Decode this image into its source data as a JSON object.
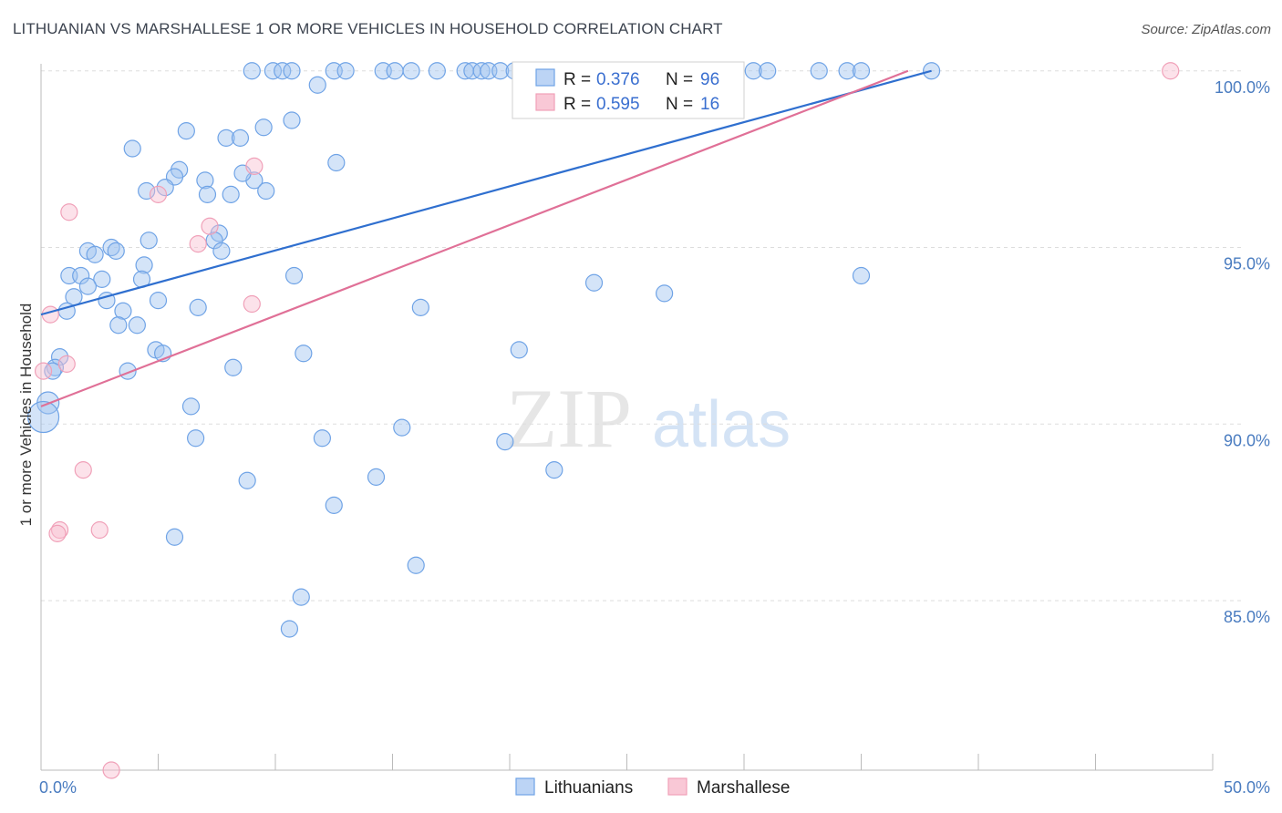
{
  "header": {
    "title": "LITHUANIAN VS MARSHALLESE 1 OR MORE VEHICLES IN HOUSEHOLD CORRELATION CHART",
    "source": "Source: ZipAtlas.com"
  },
  "watermark": {
    "zip": "ZIP",
    "atlas": "atlas"
  },
  "legend": {
    "rows": [
      {
        "r_label": "R =",
        "r_value": "0.376",
        "n_label": "N =",
        "n_value": "96",
        "color": "#6fa3e6"
      },
      {
        "r_label": "R =",
        "r_value": "0.595",
        "n_label": "N =",
        "n_value": "16",
        "color": "#f0a0b8"
      }
    ],
    "bottom": [
      "Lithuanians",
      "Marshallese"
    ]
  },
  "chart_data": {
    "type": "scatter",
    "title": "LITHUANIAN VS MARSHALLESE 1 OR MORE VEHICLES IN HOUSEHOLD CORRELATION CHART",
    "xlabel": "",
    "ylabel": "1 or more Vehicles in Household",
    "xlim": [
      0,
      50
    ],
    "ylim": [
      80.2,
      100.2
    ],
    "x_tick_labels": [
      "0.0%",
      "50.0%"
    ],
    "y_ticks": [
      85,
      90,
      95,
      100
    ],
    "y_tick_labels": [
      "85.0%",
      "90.0%",
      "95.0%",
      "100.0%"
    ],
    "grid": true,
    "legend_position": "top-center",
    "series": [
      {
        "name": "Lithuanians",
        "color": "#6fa3e6",
        "trend": {
          "x0": 0.0,
          "y0": 93.1,
          "x1": 38.0,
          "y1": 100.0
        },
        "points": [
          [
            9.0,
            100
          ],
          [
            9.9,
            100
          ],
          [
            10.3,
            100
          ],
          [
            10.7,
            100
          ],
          [
            12.5,
            100
          ],
          [
            13.0,
            100
          ],
          [
            14.6,
            100
          ],
          [
            15.1,
            100
          ],
          [
            15.8,
            100
          ],
          [
            16.9,
            100
          ],
          [
            18.1,
            100
          ],
          [
            18.4,
            100
          ],
          [
            18.8,
            100
          ],
          [
            19.1,
            100
          ],
          [
            19.6,
            100
          ],
          [
            20.2,
            100
          ],
          [
            21.4,
            100
          ],
          [
            22.3,
            100
          ],
          [
            24.0,
            100
          ],
          [
            24.6,
            100
          ],
          [
            28.3,
            100
          ],
          [
            30.4,
            100
          ],
          [
            31.0,
            100
          ],
          [
            33.2,
            100
          ],
          [
            34.4,
            100
          ],
          [
            35.0,
            100
          ],
          [
            38.0,
            100
          ],
          [
            11.8,
            99.6
          ],
          [
            10.7,
            98.6
          ],
          [
            9.5,
            98.4
          ],
          [
            6.2,
            98.3
          ],
          [
            7.9,
            98.1
          ],
          [
            8.5,
            98.1
          ],
          [
            3.9,
            97.8
          ],
          [
            12.6,
            97.4
          ],
          [
            5.9,
            97.2
          ],
          [
            5.7,
            97.0
          ],
          [
            7.0,
            96.9
          ],
          [
            9.1,
            96.9
          ],
          [
            8.6,
            97.1
          ],
          [
            5.3,
            96.7
          ],
          [
            9.6,
            96.6
          ],
          [
            7.1,
            96.5
          ],
          [
            8.1,
            96.5
          ],
          [
            4.5,
            96.6
          ],
          [
            7.6,
            95.4
          ],
          [
            7.4,
            95.2
          ],
          [
            4.6,
            95.2
          ],
          [
            2.0,
            94.9
          ],
          [
            2.3,
            94.8
          ],
          [
            3.0,
            95.0
          ],
          [
            3.2,
            94.9
          ],
          [
            7.7,
            94.9
          ],
          [
            4.4,
            94.5
          ],
          [
            1.2,
            94.2
          ],
          [
            1.7,
            94.2
          ],
          [
            2.6,
            94.1
          ],
          [
            4.3,
            94.1
          ],
          [
            10.8,
            94.2
          ],
          [
            2.0,
            93.9
          ],
          [
            1.4,
            93.6
          ],
          [
            2.8,
            93.5
          ],
          [
            5.0,
            93.5
          ],
          [
            1.1,
            93.2
          ],
          [
            3.5,
            93.2
          ],
          [
            6.7,
            93.3
          ],
          [
            16.2,
            93.3
          ],
          [
            23.6,
            94.0
          ],
          [
            26.6,
            93.7
          ],
          [
            35.0,
            94.2
          ],
          [
            3.3,
            92.8
          ],
          [
            4.1,
            92.8
          ],
          [
            4.9,
            92.1
          ],
          [
            5.2,
            92.0
          ],
          [
            11.2,
            92.0
          ],
          [
            20.4,
            92.1
          ],
          [
            0.8,
            91.9
          ],
          [
            0.6,
            91.6
          ],
          [
            0.5,
            91.5
          ],
          [
            3.7,
            91.5
          ],
          [
            8.2,
            91.6
          ],
          [
            6.4,
            90.5
          ],
          [
            0.3,
            90.6
          ],
          [
            0.1,
            90.2
          ],
          [
            6.6,
            89.6
          ],
          [
            12.0,
            89.6
          ],
          [
            15.4,
            89.9
          ],
          [
            19.8,
            89.5
          ],
          [
            21.9,
            88.7
          ],
          [
            8.8,
            88.4
          ],
          [
            14.3,
            88.5
          ],
          [
            12.5,
            87.7
          ],
          [
            5.7,
            86.8
          ],
          [
            16.0,
            86.0
          ],
          [
            11.1,
            85.1
          ],
          [
            10.6,
            84.2
          ]
        ]
      },
      {
        "name": "Marshallese",
        "color": "#f0a0b8",
        "trend": {
          "x0": 0.0,
          "y0": 90.5,
          "x1": 37.0,
          "y1": 100.0
        },
        "points": [
          [
            27.0,
            100
          ],
          [
            48.2,
            100
          ],
          [
            9.1,
            97.3
          ],
          [
            5.0,
            96.5
          ],
          [
            1.2,
            96.0
          ],
          [
            7.2,
            95.6
          ],
          [
            6.7,
            95.1
          ],
          [
            9.0,
            93.4
          ],
          [
            0.4,
            93.1
          ],
          [
            1.1,
            91.7
          ],
          [
            0.1,
            91.5
          ],
          [
            1.8,
            88.7
          ],
          [
            0.8,
            87.0
          ],
          [
            2.5,
            87.0
          ],
          [
            0.7,
            86.9
          ],
          [
            3.0,
            80.2
          ]
        ]
      }
    ]
  }
}
